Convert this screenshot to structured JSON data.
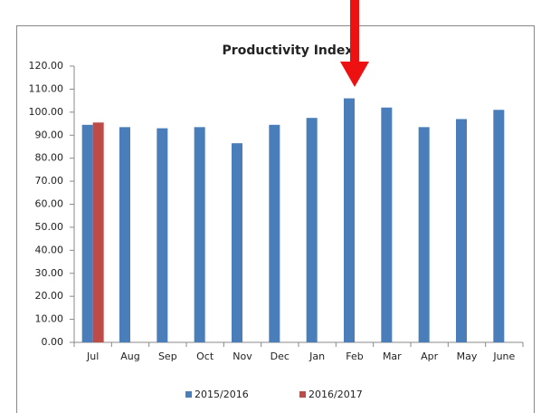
{
  "chart_data": {
    "type": "bar",
    "title": "Productivity Index",
    "categories": [
      "Jul",
      "Aug",
      "Sep",
      "Oct",
      "Nov",
      "Dec",
      "Jan",
      "Feb",
      "Mar",
      "Apr",
      "May",
      "June"
    ],
    "series": [
      {
        "name": "2015/2016",
        "color": "#4a7ebb",
        "values": [
          94.5,
          93.5,
          93,
          93.5,
          86.5,
          94.5,
          97.5,
          106,
          102,
          93.5,
          97,
          101
        ]
      },
      {
        "name": "2016/2017",
        "color": "#be4b48",
        "values": [
          95.5,
          null,
          null,
          null,
          null,
          null,
          null,
          null,
          null,
          null,
          null,
          null
        ]
      }
    ],
    "ylim": [
      0,
      120
    ],
    "yticks": [
      {
        "value": 0,
        "label": "0.00"
      },
      {
        "value": 10,
        "label": "10.00"
      },
      {
        "value": 20,
        "label": "20.00"
      },
      {
        "value": 30,
        "label": "30.00"
      },
      {
        "value": 40,
        "label": "40.00"
      },
      {
        "value": 50,
        "label": "50.00"
      },
      {
        "value": 60,
        "label": "60.00"
      },
      {
        "value": 70,
        "label": "70.00"
      },
      {
        "value": 80,
        "label": "80.00"
      },
      {
        "value": 90,
        "label": "90.00"
      },
      {
        "value": 100,
        "label": "100.00"
      },
      {
        "value": 110,
        "label": "110.00"
      },
      {
        "value": 120,
        "label": "120.00"
      }
    ],
    "grid": false,
    "legend": "bottom"
  }
}
